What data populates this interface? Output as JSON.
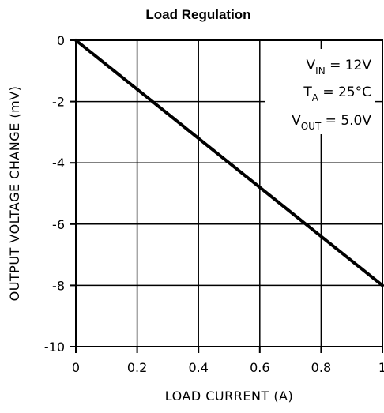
{
  "chart_data": {
    "type": "line",
    "title": "Load Regulation",
    "xlabel": "LOAD CURRENT (A)",
    "ylabel": "OUTPUT VOLTAGE CHANGE (mV)",
    "xlim": [
      0,
      1
    ],
    "ylim": [
      -10,
      0
    ],
    "x_ticks": [
      0,
      0.2,
      0.4,
      0.6,
      0.8,
      1
    ],
    "x_tick_labels": [
      "0",
      "0.2",
      "0.4",
      "0.6",
      "0.8",
      "1"
    ],
    "y_ticks": [
      0,
      -2,
      -4,
      -6,
      -8,
      -10
    ],
    "y_tick_labels": [
      "0",
      "-2",
      "-4",
      "-6",
      "-8",
      "-10"
    ],
    "grid": true,
    "series": [
      {
        "x": [
          0,
          1
        ],
        "y": [
          0,
          -8
        ]
      }
    ],
    "annotations": [
      {
        "main": "V",
        "sub": "IN",
        "rest": " = 12V"
      },
      {
        "main": "T",
        "sub": "A",
        "rest": " = 25°C"
      },
      {
        "main": "V",
        "sub": "OUT",
        "rest": " = 5.0V"
      }
    ],
    "annotation_placement": "top-right"
  }
}
